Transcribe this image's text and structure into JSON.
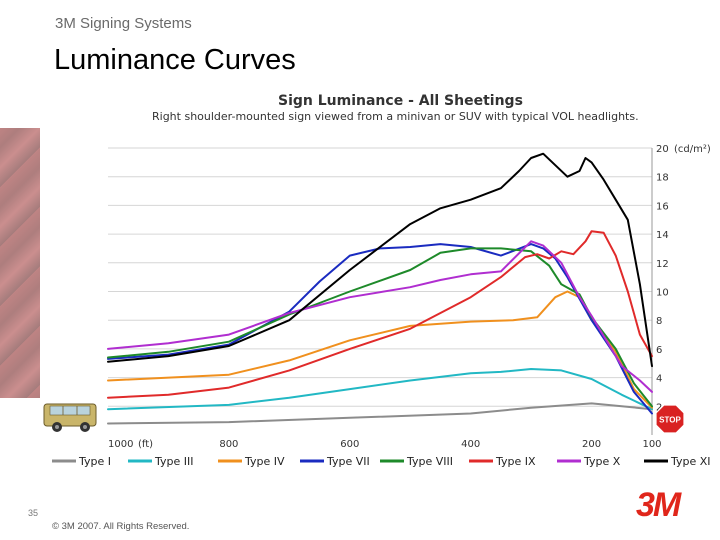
{
  "header": {
    "brand": "3M Signing Systems"
  },
  "slide": {
    "title": "Luminance Curves",
    "page_number": "35"
  },
  "footer": {
    "copyright": "© 3M 2007.  All Rights Reserved.",
    "logo_text": "3M"
  },
  "stop_sign_text": "STOP",
  "chart_data": {
    "type": "line",
    "title": "Sign Luminance - All Sheetings",
    "subtitle": "Right shoulder-mounted sign viewed from a minivan or SUV with typical VOL headlights.",
    "xlabel": "(ft)",
    "ylabel": "(cd/m²)",
    "xlim": [
      1000,
      100
    ],
    "ylim": [
      0,
      20
    ],
    "x_ticks": [
      "1000",
      "800",
      "600",
      "400",
      "200",
      "100"
    ],
    "y_ticks": [
      "2",
      "4",
      "6",
      "8",
      "10",
      "12",
      "14",
      "16",
      "18",
      "20"
    ],
    "y_axis_position": "right",
    "grid": true,
    "legend_position": "bottom",
    "series": [
      {
        "name": "Type I",
        "color": "#8c8c8c",
        "x": [
          1000,
          800,
          600,
          400,
          300,
          200,
          150,
          100
        ],
        "y": [
          0.8,
          0.9,
          1.2,
          1.5,
          1.9,
          2.2,
          2.0,
          1.8
        ]
      },
      {
        "name": "Type III",
        "color": "#22b8c4",
        "x": [
          1000,
          800,
          700,
          600,
          500,
          400,
          350,
          300,
          250,
          200,
          150,
          100
        ],
        "y": [
          1.8,
          2.1,
          2.6,
          3.2,
          3.8,
          4.3,
          4.4,
          4.6,
          4.5,
          3.9,
          2.8,
          1.8
        ]
      },
      {
        "name": "Type IV",
        "color": "#f0901e",
        "x": [
          1000,
          800,
          700,
          600,
          500,
          400,
          330,
          290,
          260,
          240,
          220,
          200,
          160,
          130,
          100
        ],
        "y": [
          3.8,
          4.2,
          5.2,
          6.6,
          7.6,
          7.9,
          8.0,
          8.2,
          9.6,
          10.0,
          9.6,
          8.0,
          5.8,
          3.2,
          1.9
        ]
      },
      {
        "name": "Type VII",
        "color": "#1a2bc0",
        "x": [
          1000,
          900,
          800,
          700,
          650,
          600,
          550,
          500,
          450,
          400,
          350,
          300,
          280,
          260,
          240,
          220,
          200,
          160,
          130,
          100
        ],
        "y": [
          5.3,
          5.6,
          6.3,
          8.6,
          10.7,
          12.5,
          13.0,
          13.1,
          13.3,
          13.1,
          12.5,
          13.3,
          13.0,
          12.3,
          11.0,
          9.5,
          8.0,
          5.5,
          3.0,
          1.5
        ]
      },
      {
        "name": "Type VIII",
        "color": "#1e8a2a",
        "x": [
          1000,
          900,
          800,
          700,
          600,
          500,
          450,
          400,
          350,
          300,
          270,
          250,
          220,
          200,
          160,
          130,
          100
        ],
        "y": [
          5.4,
          5.8,
          6.5,
          8.4,
          10.0,
          11.5,
          12.7,
          13.0,
          13.0,
          12.8,
          11.8,
          10.5,
          9.8,
          8.2,
          6.0,
          3.6,
          2.0
        ]
      },
      {
        "name": "Type IX",
        "color": "#e02a2a",
        "x": [
          1000,
          900,
          800,
          700,
          600,
          500,
          400,
          350,
          310,
          290,
          270,
          250,
          230,
          210,
          200,
          180,
          160,
          140,
          120,
          100
        ],
        "y": [
          2.6,
          2.8,
          3.3,
          4.5,
          6.0,
          7.4,
          9.6,
          11.0,
          12.4,
          12.6,
          12.3,
          12.8,
          12.6,
          13.5,
          14.2,
          14.1,
          12.5,
          10.0,
          7.0,
          5.5
        ]
      },
      {
        "name": "Type X",
        "color": "#b02ed0",
        "x": [
          1000,
          900,
          800,
          700,
          600,
          500,
          450,
          400,
          350,
          300,
          280,
          250,
          220,
          200,
          150,
          120,
          100
        ],
        "y": [
          6.0,
          6.4,
          7.0,
          8.5,
          9.6,
          10.3,
          10.8,
          11.2,
          11.4,
          13.5,
          13.2,
          12.0,
          9.6,
          8.3,
          4.8,
          3.8,
          3.0
        ]
      },
      {
        "name": "Type XI",
        "color": "#000000",
        "x": [
          1000,
          900,
          800,
          700,
          600,
          500,
          450,
          400,
          350,
          320,
          300,
          280,
          260,
          240,
          220,
          210,
          200,
          180,
          160,
          140,
          120,
          100
        ],
        "y": [
          5.1,
          5.5,
          6.2,
          8.0,
          11.5,
          14.7,
          15.8,
          16.4,
          17.2,
          18.4,
          19.3,
          19.6,
          18.8,
          18.0,
          18.4,
          19.3,
          19.0,
          17.8,
          16.4,
          15.0,
          10.5,
          4.8
        ]
      }
    ]
  }
}
